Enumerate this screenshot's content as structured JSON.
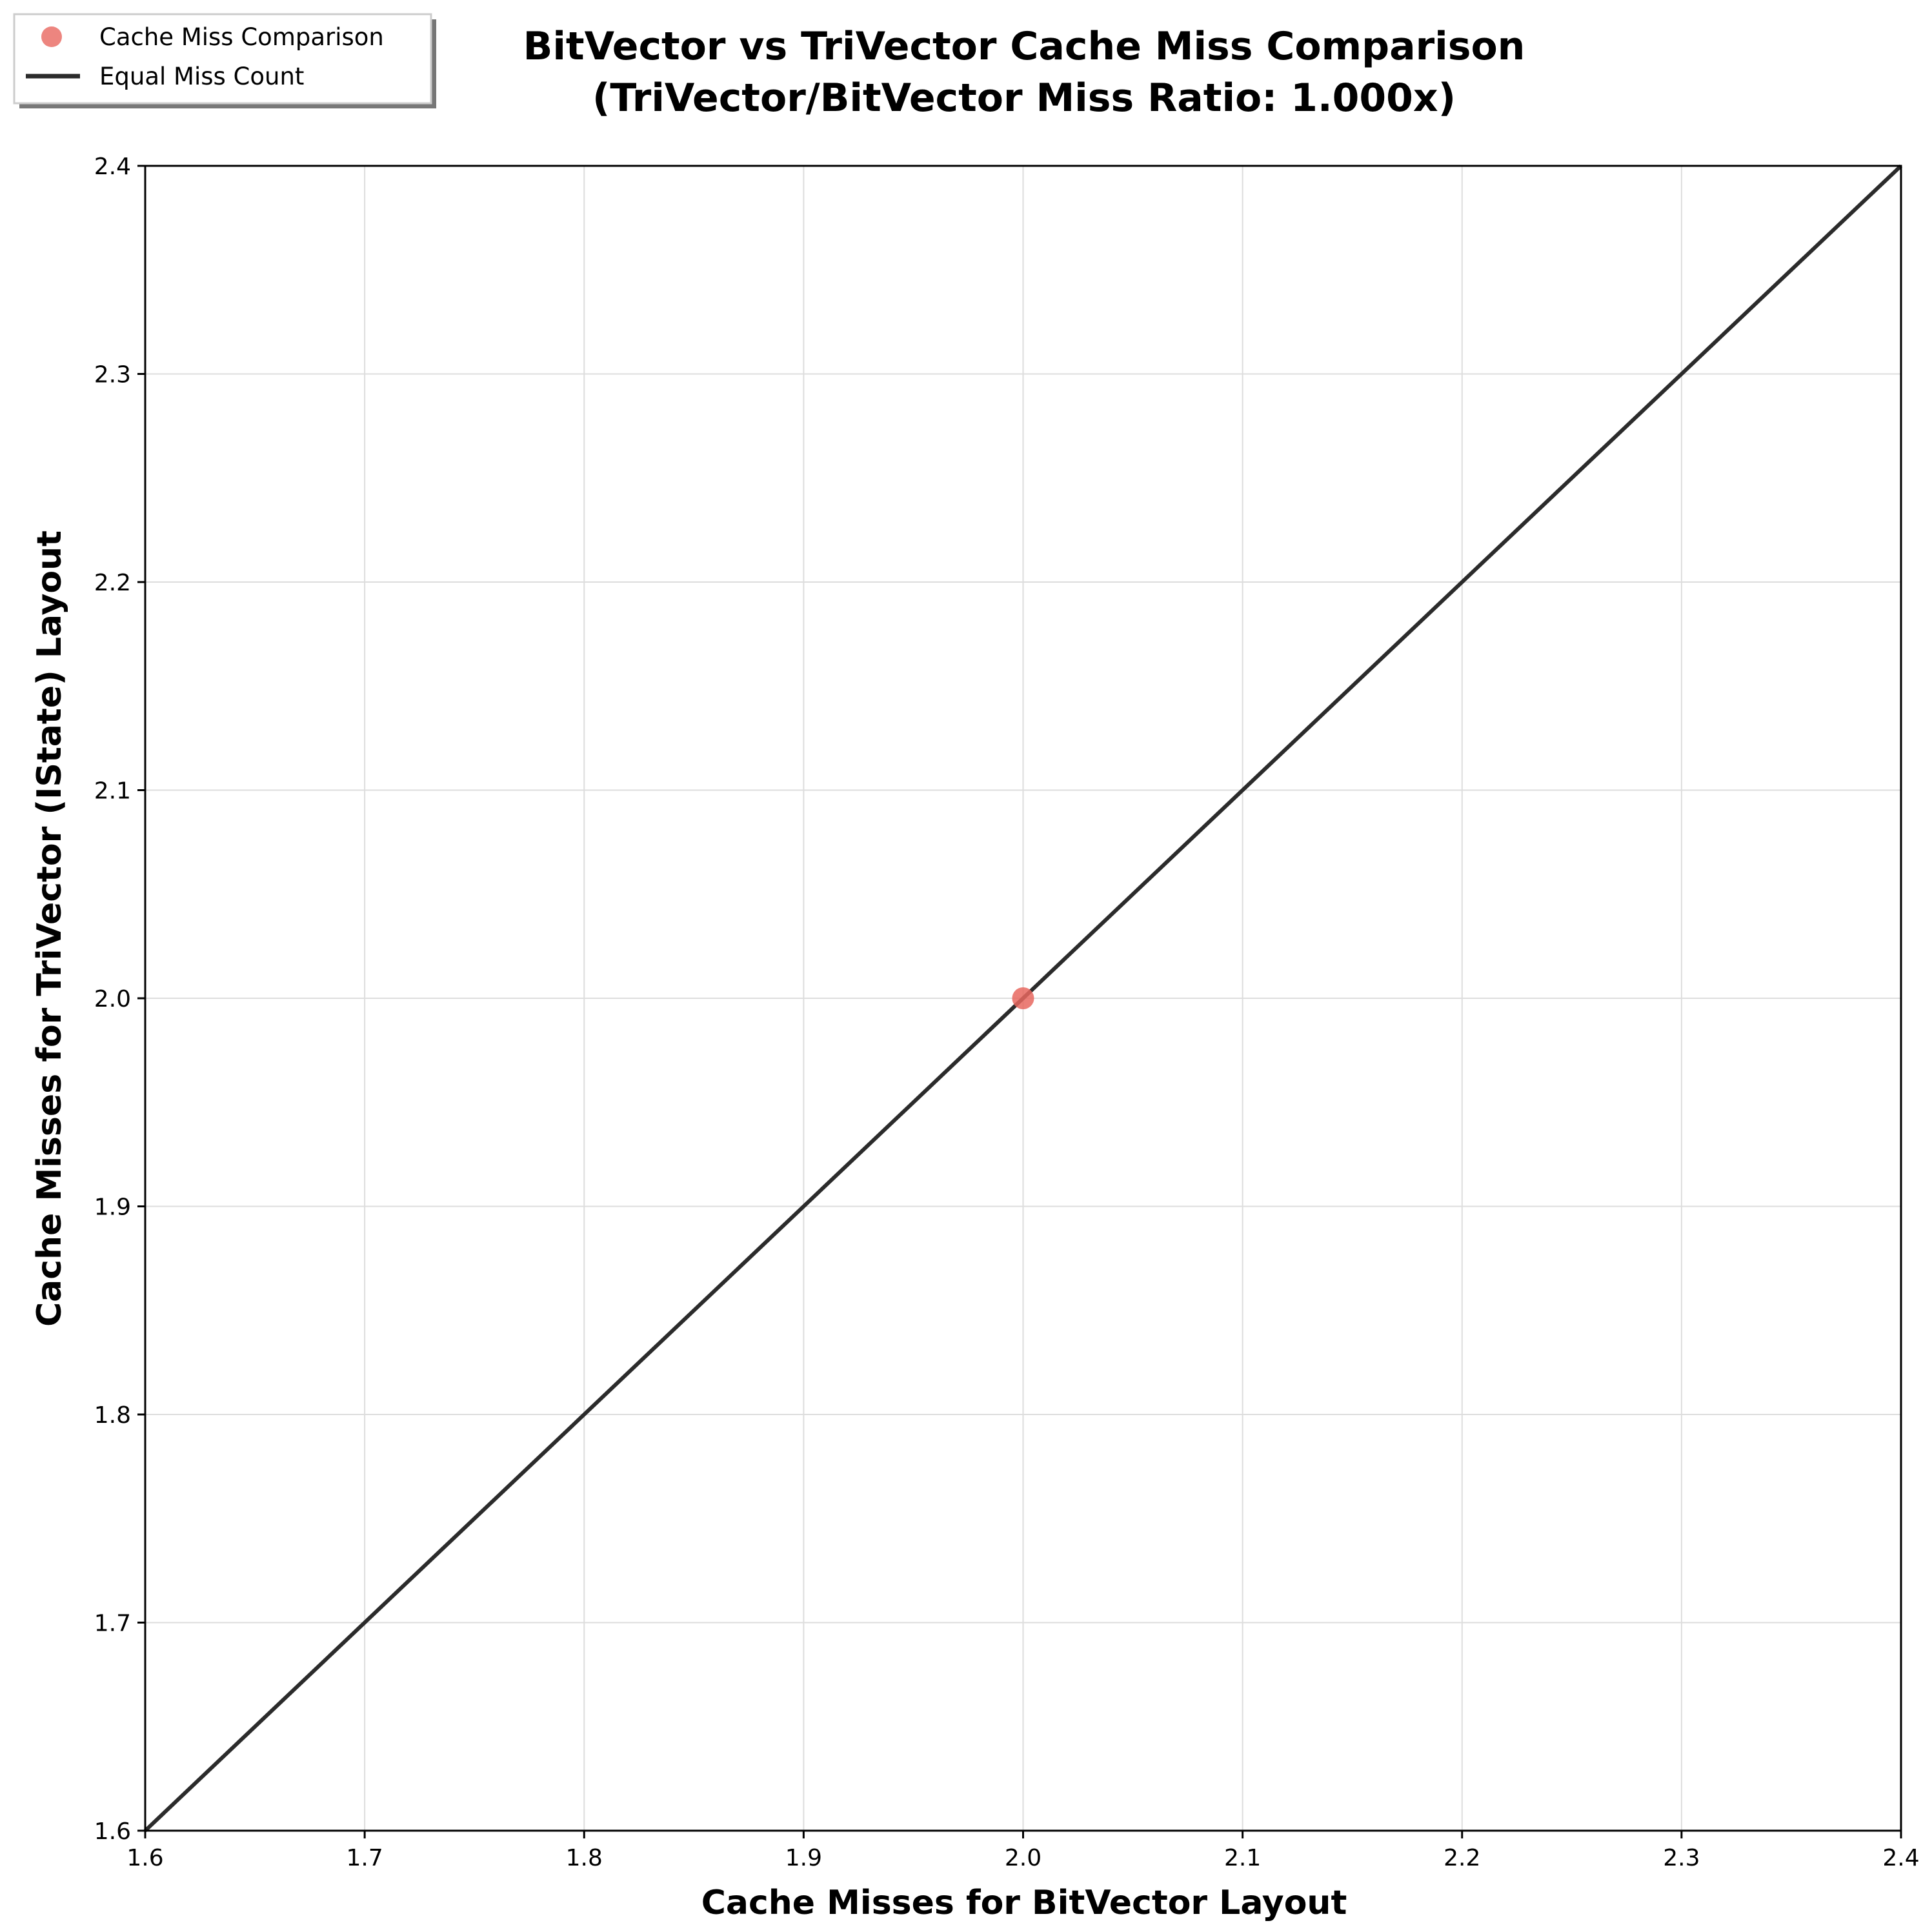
{
  "chart_data": {
    "type": "scatter",
    "title": "BitVector vs TriVector Cache Miss Comparison",
    "subtitle": "(TriVector/BitVector Miss Ratio: 1.000x)",
    "xlabel": "Cache Misses for BitVector Layout",
    "ylabel": "Cache Misses for TriVector (IState) Layout",
    "xlim": [
      1.6,
      2.4
    ],
    "ylim": [
      1.6,
      2.4
    ],
    "xticks": [
      "1.6",
      "1.7",
      "1.8",
      "1.9",
      "2.0",
      "2.1",
      "2.2",
      "2.3",
      "2.4"
    ],
    "yticks": [
      "1.6",
      "1.7",
      "1.8",
      "1.9",
      "2.0",
      "2.1",
      "2.2",
      "2.3",
      "2.4"
    ],
    "grid": true,
    "legend_position": "top-left",
    "series": [
      {
        "name": "Cache Miss Comparison",
        "kind": "scatter",
        "color": "#e8675f",
        "points": [
          {
            "x": 2.0,
            "y": 2.0
          }
        ]
      },
      {
        "name": "Equal Miss Count",
        "kind": "line",
        "color": "#2b2b2b",
        "points": [
          {
            "x": 1.6,
            "y": 1.6
          },
          {
            "x": 2.4,
            "y": 2.4
          }
        ]
      }
    ]
  }
}
